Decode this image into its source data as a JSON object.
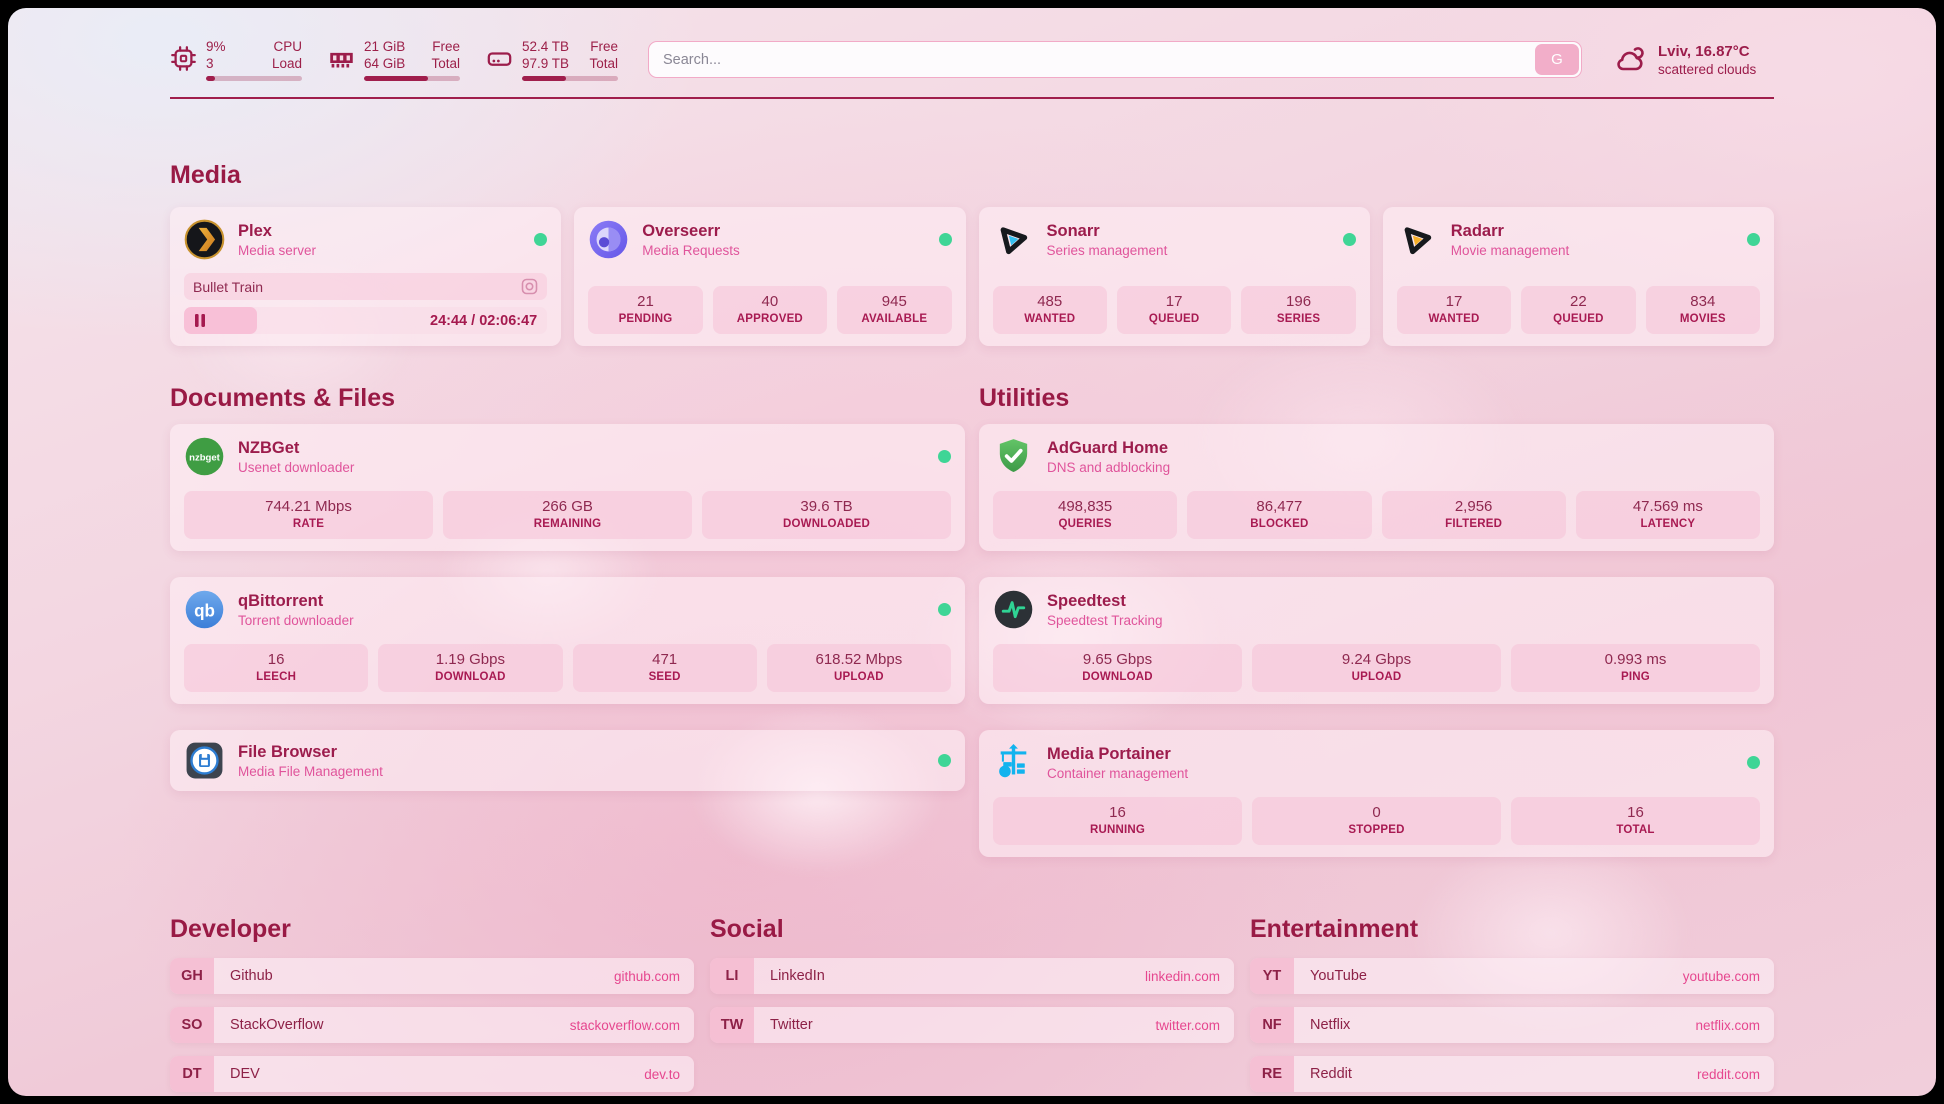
{
  "theme": {
    "accent": "#9c1b4a",
    "subtitle_pink": "#e0549b",
    "url_pink": "#e6478f",
    "online_green": "#3fd596"
  },
  "topbar": {
    "metrics": [
      {
        "icon": "cpu-icon",
        "value_top": "9%",
        "value_bottom": "3",
        "label_top": "CPU",
        "label_bottom": "Load",
        "progress_pct": 9
      },
      {
        "icon": "ram-icon",
        "value_top": "21 GiB",
        "value_bottom": "64 GiB",
        "label_top": "Free",
        "label_bottom": "Total",
        "progress_pct": 67
      },
      {
        "icon": "disk-icon",
        "value_top": "52.4 TB",
        "value_bottom": "97.9 TB",
        "label_top": "Free",
        "label_bottom": "Total",
        "progress_pct": 46
      }
    ],
    "search": {
      "placeholder": "Search...",
      "button_label": "G"
    },
    "weather": {
      "icon": "cloud-icon",
      "headline": "Lviv, 16.87°C",
      "condition": "scattered clouds"
    }
  },
  "sections": {
    "media": {
      "title": "Media",
      "apps": [
        {
          "name": "Plex",
          "description": "Media server",
          "icon": "plex-icon",
          "online": true,
          "now_playing": {
            "title": "Bullet Train",
            "time": "24:44 / 02:06:47",
            "progress_pct": 20
          }
        },
        {
          "name": "Overseerr",
          "description": "Media Requests",
          "icon": "overseerr-icon",
          "online": true,
          "stats": [
            {
              "value": "21",
              "label": "PENDING"
            },
            {
              "value": "40",
              "label": "APPROVED"
            },
            {
              "value": "945",
              "label": "AVAILABLE"
            }
          ]
        },
        {
          "name": "Sonarr",
          "description": "Series management",
          "icon": "sonarr-icon",
          "online": true,
          "stats": [
            {
              "value": "485",
              "label": "WANTED"
            },
            {
              "value": "17",
              "label": "QUEUED"
            },
            {
              "value": "196",
              "label": "SERIES"
            }
          ]
        },
        {
          "name": "Radarr",
          "description": "Movie management",
          "icon": "radarr-icon",
          "online": true,
          "stats": [
            {
              "value": "17",
              "label": "WANTED"
            },
            {
              "value": "22",
              "label": "QUEUED"
            },
            {
              "value": "834",
              "label": "MOVIES"
            }
          ]
        }
      ]
    },
    "documents": {
      "title": "Documents & Files",
      "apps": [
        {
          "name": "NZBGet",
          "description": "Usenet downloader",
          "icon": "nzbget-icon",
          "online": true,
          "stats": [
            {
              "value": "744.21 Mbps",
              "label": "RATE"
            },
            {
              "value": "266 GB",
              "label": "REMAINING"
            },
            {
              "value": "39.6 TB",
              "label": "DOWNLOADED"
            }
          ]
        },
        {
          "name": "qBittorrent",
          "description": "Torrent downloader",
          "icon": "qbittorrent-icon",
          "online": true,
          "stats": [
            {
              "value": "16",
              "label": "LEECH"
            },
            {
              "value": "1.19 Gbps",
              "label": "DOWNLOAD"
            },
            {
              "value": "471",
              "label": "SEED"
            },
            {
              "value": "618.52 Mbps",
              "label": "UPLOAD"
            }
          ]
        },
        {
          "name": "File Browser",
          "description": "Media File Management",
          "icon": "filebrowser-icon",
          "online": true
        }
      ]
    },
    "utilities": {
      "title": "Utilities",
      "apps": [
        {
          "name": "AdGuard Home",
          "description": "DNS and adblocking",
          "icon": "adguard-icon",
          "stats": [
            {
              "value": "498,835",
              "label": "QUERIES"
            },
            {
              "value": "86,477",
              "label": "BLOCKED"
            },
            {
              "value": "2,956",
              "label": "FILTERED"
            },
            {
              "value": "47.569 ms",
              "label": "LATENCY"
            }
          ]
        },
        {
          "name": "Speedtest",
          "description": "Speedtest Tracking",
          "icon": "speedtest-icon",
          "stats": [
            {
              "value": "9.65 Gbps",
              "label": "DOWNLOAD"
            },
            {
              "value": "9.24 Gbps",
              "label": "UPLOAD"
            },
            {
              "value": "0.993 ms",
              "label": "PING"
            }
          ]
        },
        {
          "name": "Media Portainer",
          "description": "Container management",
          "icon": "portainer-icon",
          "online": true,
          "stats": [
            {
              "value": "16",
              "label": "RUNNING"
            },
            {
              "value": "0",
              "label": "STOPPED"
            },
            {
              "value": "16",
              "label": "TOTAL"
            }
          ]
        }
      ]
    },
    "developer": {
      "title": "Developer",
      "links": [
        {
          "badge": "GH",
          "name": "Github",
          "url": "github.com"
        },
        {
          "badge": "SO",
          "name": "StackOverflow",
          "url": "stackoverflow.com"
        },
        {
          "badge": "DT",
          "name": "DEV",
          "url": "dev.to"
        }
      ]
    },
    "social": {
      "title": "Social",
      "links": [
        {
          "badge": "LI",
          "name": "LinkedIn",
          "url": "linkedin.com"
        },
        {
          "badge": "TW",
          "name": "Twitter",
          "url": "twitter.com"
        }
      ]
    },
    "entertainment": {
      "title": "Entertainment",
      "links": [
        {
          "badge": "YT",
          "name": "YouTube",
          "url": "youtube.com"
        },
        {
          "badge": "NF",
          "name": "Netflix",
          "url": "netflix.com"
        },
        {
          "badge": "RE",
          "name": "Reddit",
          "url": "reddit.com"
        }
      ]
    }
  }
}
